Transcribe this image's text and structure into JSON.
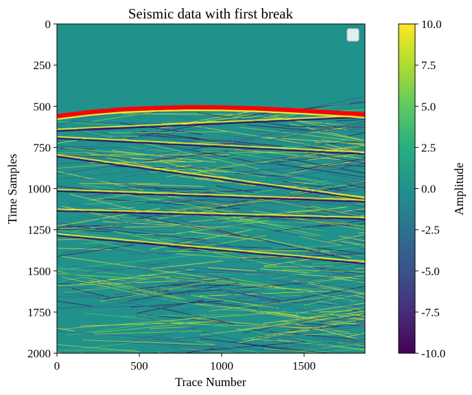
{
  "chart_data": {
    "type": "heatmap",
    "title": "Seismic data with first break",
    "xlabel": "Trace Number",
    "ylabel": "Time Samples",
    "xlim": [
      0,
      1870
    ],
    "ylim": [
      2000,
      0
    ],
    "xticks": [
      0,
      500,
      1000,
      1500
    ],
    "xtick_labels": [
      "0",
      "500",
      "1000",
      "1500"
    ],
    "yticks": [
      0,
      250,
      500,
      750,
      1000,
      1250,
      1500,
      1750,
      2000
    ],
    "ytick_labels": [
      "0",
      "250",
      "500",
      "750",
      "1000",
      "1250",
      "1500",
      "1750",
      "2000"
    ],
    "colormap": "viridis",
    "colorbar": {
      "label": "Amplitude",
      "range": [
        -10.0,
        10.0
      ],
      "ticks": [
        10.0,
        7.5,
        5.0,
        2.5,
        0.0,
        -2.5,
        -5.0,
        -7.5,
        -10.0
      ],
      "tick_labels": [
        "10.0",
        "7.5",
        "5.0",
        "2.5",
        "0.0",
        "-2.5",
        "-5.0",
        "-7.5",
        "-10.0"
      ]
    },
    "background_value": 0.0,
    "first_break": {
      "color": "#ff0000",
      "x": [
        0,
        200,
        400,
        600,
        800,
        1000,
        1200,
        1400,
        1600,
        1870
      ],
      "y": [
        560,
        535,
        518,
        510,
        505,
        507,
        512,
        522,
        533,
        550
      ]
    },
    "coherent_events": [
      {
        "x": [
          0,
          1870
        ],
        "y": [
          645,
          560
        ]
      },
      {
        "x": [
          0,
          1870
        ],
        "y": [
          690,
          785
        ]
      },
      {
        "x": [
          0,
          1870
        ],
        "y": [
          800,
          1060
        ]
      },
      {
        "x": [
          0,
          1870
        ],
        "y": [
          1010,
          1075
        ]
      },
      {
        "x": [
          0,
          1870
        ],
        "y": [
          1280,
          1450
        ]
      },
      {
        "x": [
          0,
          1870
        ],
        "y": [
          1130,
          1180
        ]
      }
    ],
    "legend": {
      "position": "top-right",
      "entries": []
    }
  }
}
